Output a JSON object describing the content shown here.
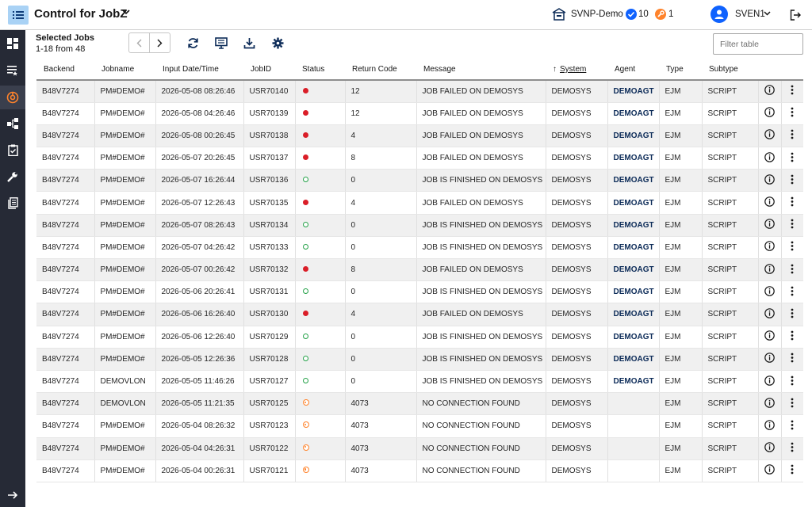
{
  "header": {
    "title": "Control for JobZ",
    "system_name": "SVNP-Demo",
    "ok_count": "10",
    "warning_count": "1",
    "user_name": "SVEN1"
  },
  "sidebar": {
    "items": [
      {
        "name": "dashboard-icon"
      },
      {
        "name": "job-list-icon"
      },
      {
        "name": "monitor-icon",
        "active": true
      },
      {
        "name": "workflow-icon"
      },
      {
        "name": "clipboard-icon"
      },
      {
        "name": "wrench-icon"
      },
      {
        "name": "document-icon"
      }
    ],
    "expand_icon": "arrow-right-icon"
  },
  "toolbar": {
    "selected_title": "Selected Jobs",
    "selected_count": "1-18 from 48",
    "filter_placeholder": "Filter table"
  },
  "colors": {
    "accent": "#0f62fe",
    "failed": "#da1e28",
    "finished": "#24a148",
    "no_connection": "#ff832b",
    "sidebar_bg": "#262a36"
  },
  "table": {
    "columns": [
      "Backend",
      "Jobname",
      "Input Date/Time",
      "JobID",
      "Status",
      "Return Code",
      "Message",
      "System",
      "Agent",
      "Type",
      "Subtype"
    ],
    "sort_column": "System",
    "rows": [
      {
        "backend": "B48V7274",
        "jobname": "PM#DEMO#",
        "datetime": "2026-05-08 08:26:46",
        "jobid": "USR70140",
        "status": "failed",
        "rc": "12",
        "message": "JOB FAILED ON DEMOSYS",
        "system": "DEMOSYS",
        "agent": "DEMOAGT",
        "type": "EJM",
        "subtype": "SCRIPT"
      },
      {
        "backend": "B48V7274",
        "jobname": "PM#DEMO#",
        "datetime": "2026-05-08 04:26:46",
        "jobid": "USR70139",
        "status": "failed",
        "rc": "12",
        "message": "JOB FAILED ON DEMOSYS",
        "system": "DEMOSYS",
        "agent": "DEMOAGT",
        "type": "EJM",
        "subtype": "SCRIPT"
      },
      {
        "backend": "B48V7274",
        "jobname": "PM#DEMO#",
        "datetime": "2026-05-08 00:26:45",
        "jobid": "USR70138",
        "status": "failed",
        "rc": "4",
        "message": "JOB FAILED ON DEMOSYS",
        "system": "DEMOSYS",
        "agent": "DEMOAGT",
        "type": "EJM",
        "subtype": "SCRIPT"
      },
      {
        "backend": "B48V7274",
        "jobname": "PM#DEMO#",
        "datetime": "2026-05-07 20:26:45",
        "jobid": "USR70137",
        "status": "failed",
        "rc": "8",
        "message": "JOB FAILED ON DEMOSYS",
        "system": "DEMOSYS",
        "agent": "DEMOAGT",
        "type": "EJM",
        "subtype": "SCRIPT"
      },
      {
        "backend": "B48V7274",
        "jobname": "PM#DEMO#",
        "datetime": "2026-05-07 16:26:44",
        "jobid": "USR70136",
        "status": "ok",
        "rc": "0",
        "message": "JOB IS FINISHED ON DEMOSYS",
        "system": "DEMOSYS",
        "agent": "DEMOAGT",
        "type": "EJM",
        "subtype": "SCRIPT"
      },
      {
        "backend": "B48V7274",
        "jobname": "PM#DEMO#",
        "datetime": "2026-05-07 12:26:43",
        "jobid": "USR70135",
        "status": "failed",
        "rc": "4",
        "message": "JOB FAILED ON DEMOSYS",
        "system": "DEMOSYS",
        "agent": "DEMOAGT",
        "type": "EJM",
        "subtype": "SCRIPT"
      },
      {
        "backend": "B48V7274",
        "jobname": "PM#DEMO#",
        "datetime": "2026-05-07 08:26:43",
        "jobid": "USR70134",
        "status": "ok",
        "rc": "0",
        "message": "JOB IS FINISHED ON DEMOSYS",
        "system": "DEMOSYS",
        "agent": "DEMOAGT",
        "type": "EJM",
        "subtype": "SCRIPT"
      },
      {
        "backend": "B48V7274",
        "jobname": "PM#DEMO#",
        "datetime": "2026-05-07 04:26:42",
        "jobid": "USR70133",
        "status": "ok",
        "rc": "0",
        "message": "JOB IS FINISHED ON DEMOSYS",
        "system": "DEMOSYS",
        "agent": "DEMOAGT",
        "type": "EJM",
        "subtype": "SCRIPT"
      },
      {
        "backend": "B48V7274",
        "jobname": "PM#DEMO#",
        "datetime": "2026-05-07 00:26:42",
        "jobid": "USR70132",
        "status": "failed",
        "rc": "8",
        "message": "JOB FAILED ON DEMOSYS",
        "system": "DEMOSYS",
        "agent": "DEMOAGT",
        "type": "EJM",
        "subtype": "SCRIPT"
      },
      {
        "backend": "B48V7274",
        "jobname": "PM#DEMO#",
        "datetime": "2026-05-06 20:26:41",
        "jobid": "USR70131",
        "status": "ok",
        "rc": "0",
        "message": "JOB IS FINISHED ON DEMOSYS",
        "system": "DEMOSYS",
        "agent": "DEMOAGT",
        "type": "EJM",
        "subtype": "SCRIPT"
      },
      {
        "backend": "B48V7274",
        "jobname": "PM#DEMO#",
        "datetime": "2026-05-06 16:26:40",
        "jobid": "USR70130",
        "status": "failed",
        "rc": "4",
        "message": "JOB FAILED ON DEMOSYS",
        "system": "DEMOSYS",
        "agent": "DEMOAGT",
        "type": "EJM",
        "subtype": "SCRIPT"
      },
      {
        "backend": "B48V7274",
        "jobname": "PM#DEMO#",
        "datetime": "2026-05-06 12:26:40",
        "jobid": "USR70129",
        "status": "ok",
        "rc": "0",
        "message": "JOB IS FINISHED ON DEMOSYS",
        "system": "DEMOSYS",
        "agent": "DEMOAGT",
        "type": "EJM",
        "subtype": "SCRIPT"
      },
      {
        "backend": "B48V7274",
        "jobname": "PM#DEMO#",
        "datetime": "2026-05-05 12:26:36",
        "jobid": "USR70128",
        "status": "ok",
        "rc": "0",
        "message": "JOB IS FINISHED ON DEMOSYS",
        "system": "DEMOSYS",
        "agent": "DEMOAGT",
        "type": "EJM",
        "subtype": "SCRIPT"
      },
      {
        "backend": "B48V7274",
        "jobname": "DEMOVLON",
        "datetime": "2026-05-05 11:46:26",
        "jobid": "USR70127",
        "status": "ok",
        "rc": "0",
        "message": "JOB IS FINISHED ON DEMOSYS",
        "system": "DEMOSYS",
        "agent": "DEMOAGT",
        "type": "EJM",
        "subtype": "SCRIPT"
      },
      {
        "backend": "B48V7274",
        "jobname": "DEMOVLON",
        "datetime": "2026-05-05 11:21:35",
        "jobid": "USR70125",
        "status": "noconn",
        "rc": "4073",
        "message": "NO CONNECTION FOUND",
        "system": "DEMOSYS",
        "agent": "",
        "type": "EJM",
        "subtype": "SCRIPT"
      },
      {
        "backend": "B48V7274",
        "jobname": "PM#DEMO#",
        "datetime": "2026-05-04 08:26:32",
        "jobid": "USR70123",
        "status": "noconn",
        "rc": "4073",
        "message": "NO CONNECTION FOUND",
        "system": "DEMOSYS",
        "agent": "",
        "type": "EJM",
        "subtype": "SCRIPT"
      },
      {
        "backend": "B48V7274",
        "jobname": "PM#DEMO#",
        "datetime": "2026-05-04 04:26:31",
        "jobid": "USR70122",
        "status": "noconn",
        "rc": "4073",
        "message": "NO CONNECTION FOUND",
        "system": "DEMOSYS",
        "agent": "",
        "type": "EJM",
        "subtype": "SCRIPT"
      },
      {
        "backend": "B48V7274",
        "jobname": "PM#DEMO#",
        "datetime": "2026-05-04 00:26:31",
        "jobid": "USR70121",
        "status": "noconn",
        "rc": "4073",
        "message": "NO CONNECTION FOUND",
        "system": "DEMOSYS",
        "agent": "",
        "type": "EJM",
        "subtype": "SCRIPT"
      }
    ]
  }
}
